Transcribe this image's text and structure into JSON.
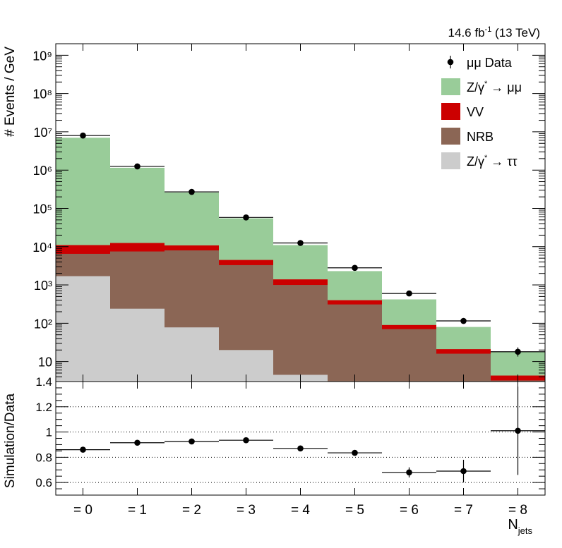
{
  "header": {
    "lumi_text": "14.6 fb",
    "lumi_exp": "-1",
    "energy_text": " (13 TeV)"
  },
  "axes": {
    "top_ylabel": "# Events / GeV",
    "bottom_ylabel": "Simulation/Data",
    "xlabel_main": "N",
    "xlabel_sub": "jets"
  },
  "legend": [
    {
      "key": "data",
      "label": "μμ Data",
      "kind": "marker",
      "color": "#000000"
    },
    {
      "key": "dy_mumu",
      "label": "Z/γ",
      "sup": "*",
      "tail": " → μμ",
      "kind": "box",
      "color": "#99cc99"
    },
    {
      "key": "vv",
      "label": "VV",
      "kind": "box",
      "color": "#cc0000"
    },
    {
      "key": "nrb",
      "label": "NRB",
      "kind": "box",
      "color": "#8b6655"
    },
    {
      "key": "dy_tautau",
      "label": "Z/γ",
      "sup": "*",
      "tail": " → ττ",
      "kind": "box",
      "color": "#cccccc"
    }
  ],
  "chart_data": [
    {
      "type": "bar",
      "stacked": true,
      "yscale": "log",
      "ylim": [
        3,
        2000000000
      ],
      "ylabel": "# Events / GeV",
      "categories": [
        "= 0",
        "= 1",
        "= 2",
        "= 3",
        "= 4",
        "= 5",
        "= 6",
        "= 7",
        "= 8"
      ],
      "y_tick_labels": [
        "10",
        "10²",
        "10³",
        "10⁴",
        "10⁵",
        "10⁶",
        "10⁷",
        "10⁸",
        "10⁹"
      ],
      "stack_totals": {
        "dy_tautau": [
          1700,
          240,
          78,
          20,
          4.5,
          1,
          0,
          0,
          0
        ],
        "nrb": [
          6500,
          7500,
          8000,
          3300,
          1000,
          310,
          70,
          16,
          3.2
        ],
        "vv": [
          11000,
          12500,
          10800,
          4500,
          1400,
          400,
          90,
          21,
          4.3
        ],
        "dy_mumu": [
          7000000,
          1150000,
          260000,
          55000,
          11000,
          2300,
          420,
          80,
          18
        ]
      },
      "series": [
        {
          "name": "μμ Data",
          "key": "data",
          "values": [
            8000000,
            1250000,
            270000,
            58000,
            12500,
            2800,
            600,
            115,
            18
          ]
        }
      ],
      "grid": false,
      "legend_position": "top-right"
    },
    {
      "type": "scatter",
      "ylabel": "Simulation/Data",
      "xlabel": "N_jets",
      "categories": [
        "= 0",
        "= 1",
        "= 2",
        "= 3",
        "= 4",
        "= 5",
        "= 6",
        "= 7",
        "= 8"
      ],
      "ylim": [
        0.5,
        1.4
      ],
      "y_ticks": [
        0.6,
        0.8,
        1.0,
        1.2,
        1.4
      ],
      "y_tick_labels": [
        "0.6",
        "0.8",
        "1",
        "1.2",
        "1.4"
      ],
      "grid_lines": [
        0.6,
        0.8,
        1.0,
        1.2,
        1.4
      ],
      "values": [
        0.86,
        0.915,
        0.925,
        0.935,
        0.87,
        0.835,
        0.68,
        0.69,
        1.01
      ],
      "errors": [
        0.003,
        0.004,
        0.005,
        0.008,
        0.012,
        0.02,
        0.04,
        0.09,
        0.35
      ]
    }
  ]
}
